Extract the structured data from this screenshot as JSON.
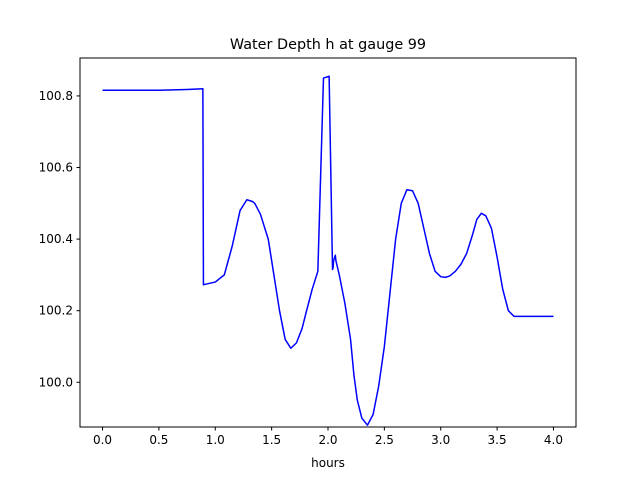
{
  "chart_data": {
    "type": "line",
    "title": "Water Depth h at gauge 99",
    "xlabel": "hours",
    "ylabel": "",
    "xlim": [
      -0.2,
      4.2
    ],
    "ylim": [
      99.875,
      100.906
    ],
    "xticks": [
      0.0,
      0.5,
      1.0,
      1.5,
      2.0,
      2.5,
      3.0,
      3.5,
      4.0
    ],
    "xtick_labels": [
      "0.0",
      "0.5",
      "1.0",
      "1.5",
      "2.0",
      "2.5",
      "3.0",
      "3.5",
      "4.0"
    ],
    "yticks": [
      100.0,
      100.2,
      100.4,
      100.6,
      100.8
    ],
    "ytick_labels": [
      "100.0",
      "100.2",
      "100.4",
      "100.6",
      "100.8"
    ],
    "grid": false,
    "series": [
      {
        "color": "#0000ff",
        "x": [
          0.0,
          0.5,
          0.75,
          0.89,
          0.895,
          0.9,
          1.0,
          1.08,
          1.15,
          1.22,
          1.28,
          1.33,
          1.35,
          1.4,
          1.47,
          1.52,
          1.57,
          1.62,
          1.67,
          1.72,
          1.77,
          1.81,
          1.86,
          1.91,
          1.96,
          2.01,
          2.04,
          2.045,
          2.05,
          2.06,
          2.065,
          2.07,
          2.1,
          2.15,
          2.2,
          2.23,
          2.26,
          2.3,
          2.35,
          2.4,
          2.45,
          2.5,
          2.55,
          2.6,
          2.65,
          2.7,
          2.75,
          2.8,
          2.85,
          2.9,
          2.95,
          3.0,
          3.04,
          3.08,
          3.13,
          3.18,
          3.23,
          3.28,
          3.32,
          3.36,
          3.4,
          3.45,
          3.5,
          3.55,
          3.6,
          3.65,
          3.7,
          3.74,
          3.78,
          3.82,
          3.87,
          3.92,
          3.97,
          4.0
        ],
        "y": [
          100.816,
          100.816,
          100.818,
          100.82,
          100.272,
          100.273,
          100.28,
          100.3,
          100.38,
          100.48,
          100.51,
          100.505,
          100.5,
          100.47,
          100.4,
          100.3,
          100.2,
          100.12,
          100.095,
          100.11,
          100.15,
          100.2,
          100.26,
          100.31,
          100.85,
          100.855,
          100.315,
          100.32,
          100.34,
          100.35,
          100.355,
          100.34,
          100.3,
          100.22,
          100.12,
          100.02,
          99.95,
          99.9,
          99.88,
          99.91,
          99.99,
          100.1,
          100.25,
          100.4,
          100.5,
          100.538,
          100.535,
          100.5,
          100.43,
          100.36,
          100.31,
          100.295,
          100.293,
          100.297,
          100.31,
          100.33,
          100.36,
          100.41,
          100.455,
          100.472,
          100.465,
          100.43,
          100.35,
          100.26,
          100.2,
          100.184,
          100.184,
          100.184,
          100.184,
          100.184,
          100.184,
          100.184,
          100.184,
          100.184
        ]
      }
    ]
  }
}
